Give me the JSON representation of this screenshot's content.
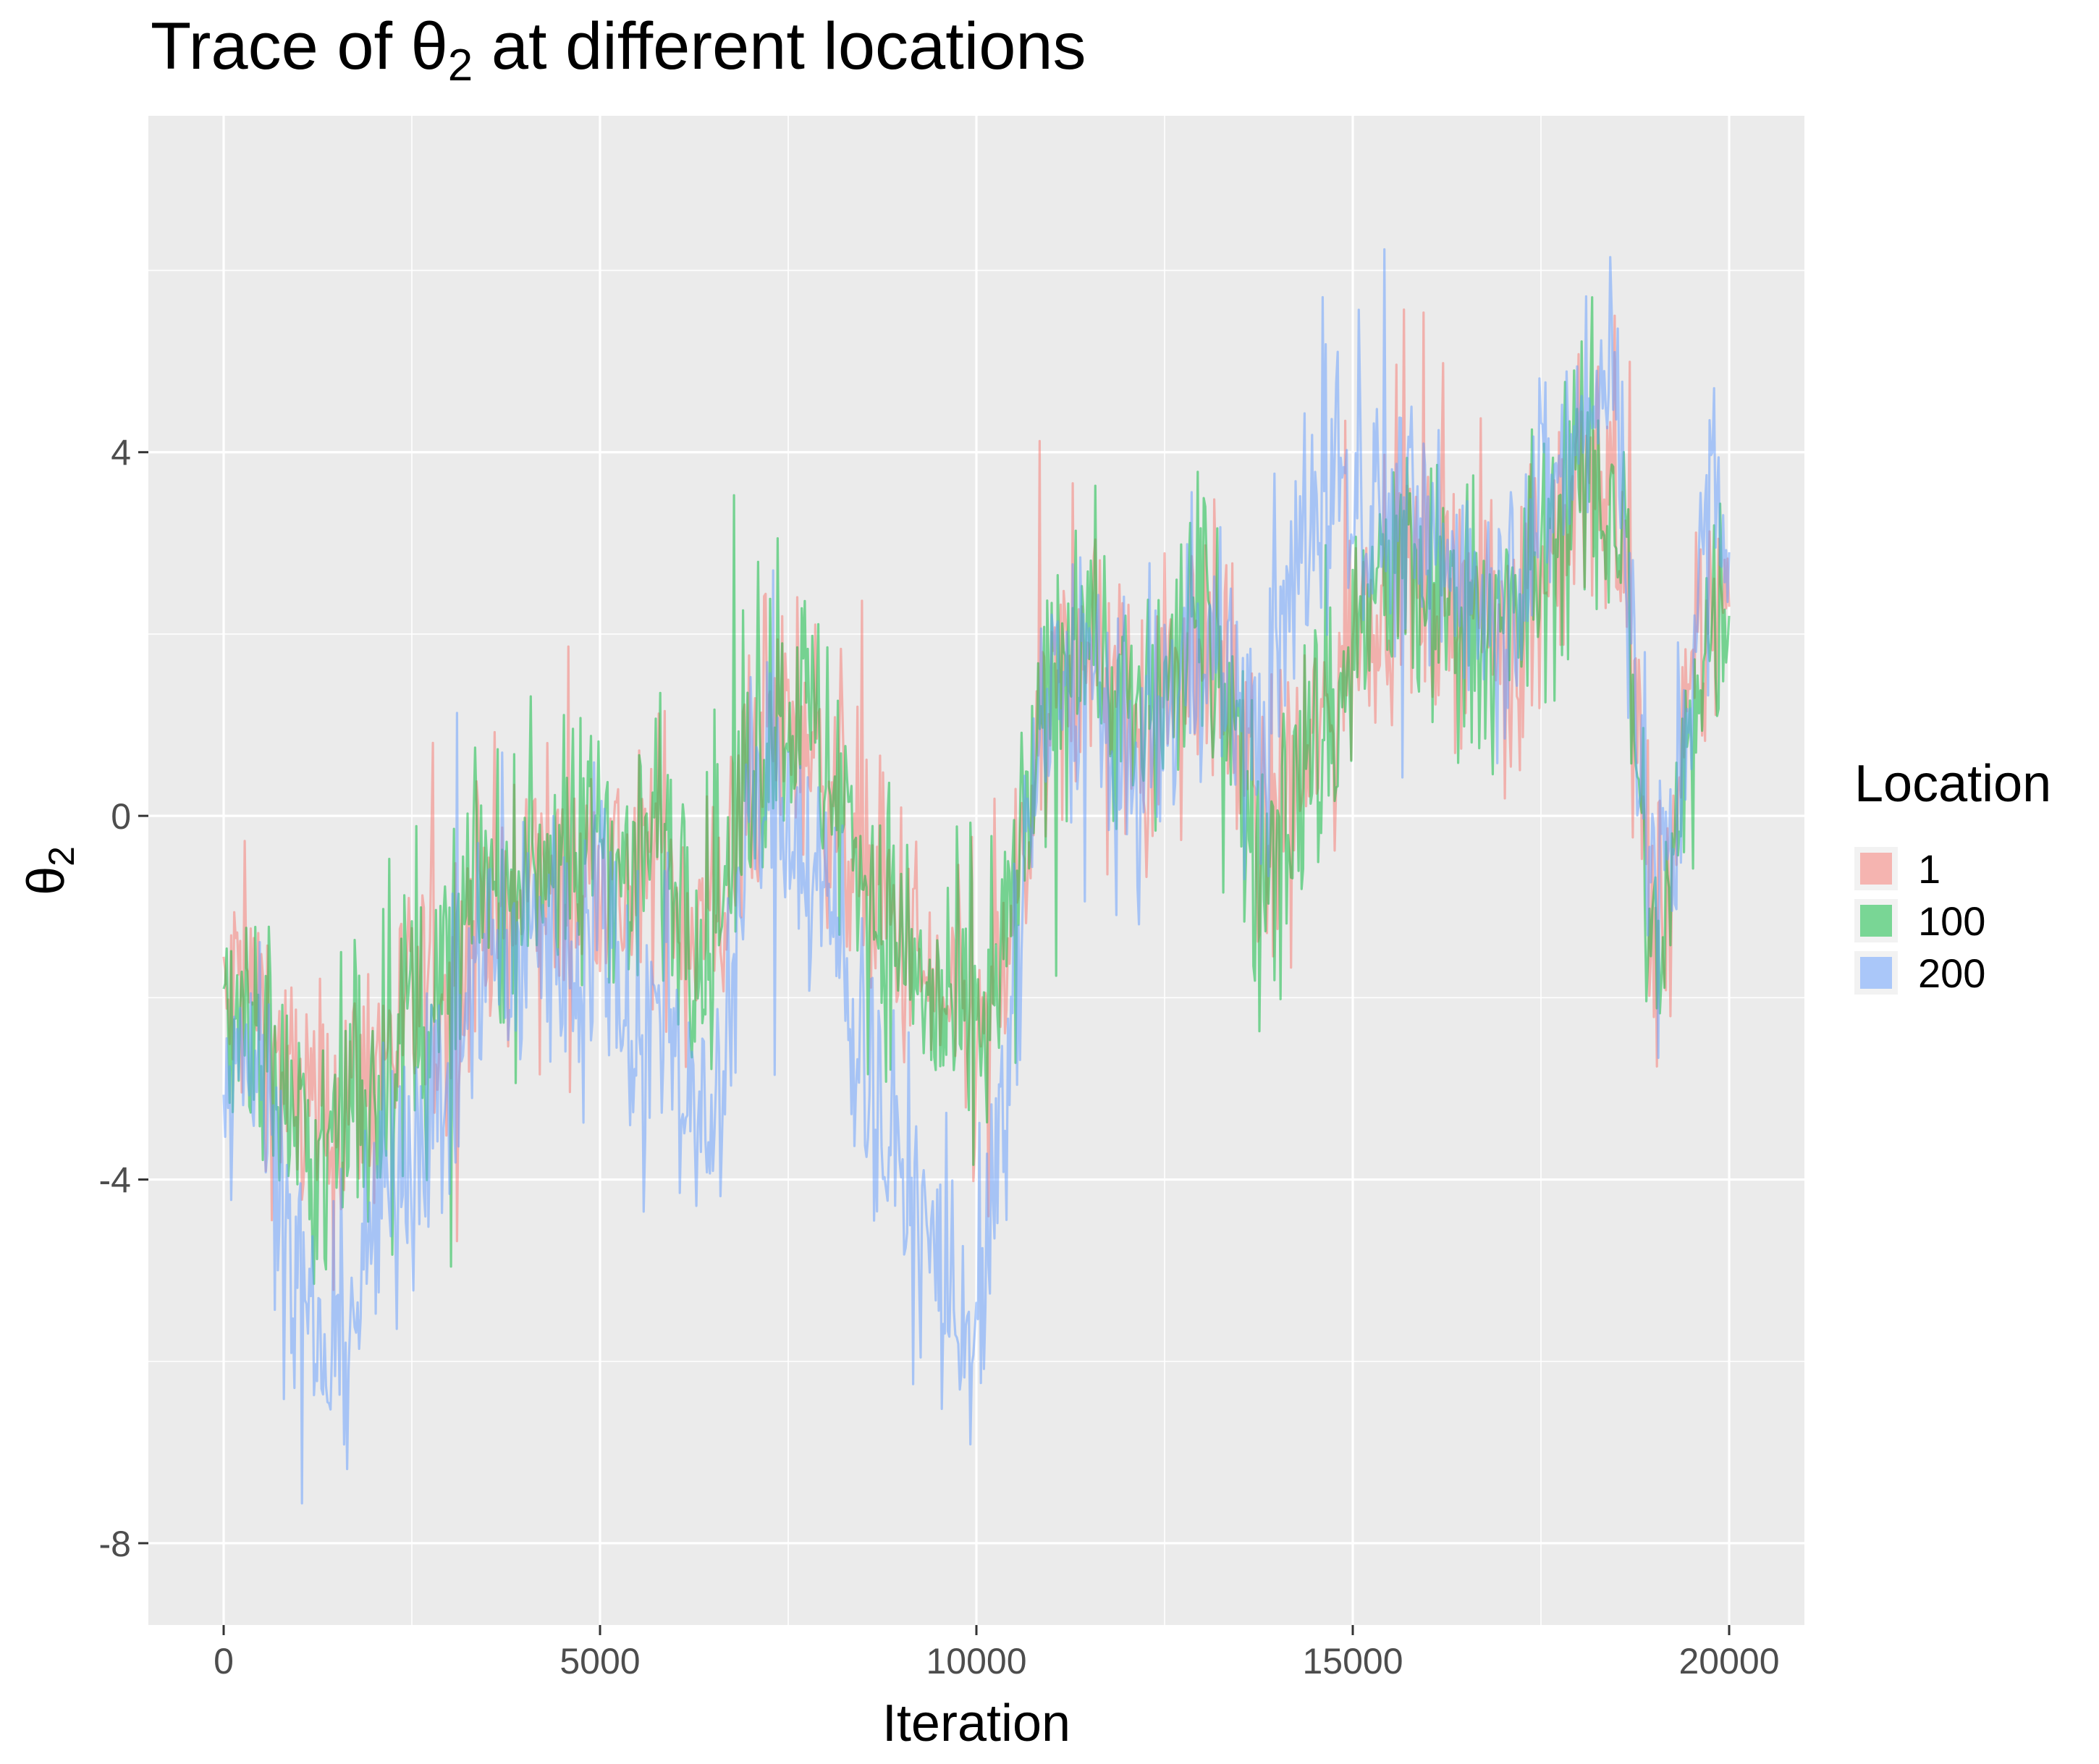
{
  "chart_data": {
    "type": "line",
    "title": "Trace of θ₂ at different locations",
    "title_parts": {
      "prefix": "Trace of ",
      "symbol": "θ",
      "subscript": "2",
      "suffix": " at different locations"
    },
    "xlabel": "Iteration",
    "ylabel": {
      "symbol": "θ",
      "subscript": "2"
    },
    "xlim": [
      -1000,
      21000
    ],
    "ylim": [
      -8.9,
      7.7
    ],
    "x_ticks": [
      0,
      5000,
      10000,
      15000,
      20000
    ],
    "x_tick_labels": [
      "0",
      "5000",
      "10000",
      "15000",
      "20000"
    ],
    "y_ticks": [
      -8,
      -4,
      0,
      4
    ],
    "y_tick_labels": [
      "-8",
      "-4",
      "0",
      "4"
    ],
    "grid": true,
    "legend": {
      "title": "Location",
      "placement": "right"
    },
    "series": [
      {
        "name": "1",
        "color": "#F8766D",
        "x": [
          0,
          200,
          400,
          600,
          800,
          1000,
          1200,
          1400,
          1600,
          1800,
          2000,
          2200,
          2400,
          2600,
          2800,
          3000,
          3200,
          3400,
          3600,
          3800,
          4000,
          4200,
          4400,
          4600,
          4800,
          5000,
          5200,
          5400,
          5600,
          5800,
          6000,
          6200,
          6400,
          6600,
          6800,
          7000,
          7200,
          7400,
          7600,
          7800,
          8000,
          8200,
          8400,
          8600,
          8800,
          9000,
          9200,
          9400,
          9600,
          9800,
          10000,
          10200,
          10400,
          10600,
          10800,
          11000,
          11200,
          11400,
          11600,
          11800,
          12000,
          12200,
          12400,
          12600,
          12800,
          13000,
          13200,
          13400,
          13600,
          13800,
          14000,
          14200,
          14400,
          14600,
          14800,
          15000,
          15200,
          15400,
          15600,
          15800,
          16000,
          16200,
          16400,
          16600,
          16800,
          17000,
          17200,
          17400,
          17600,
          17800,
          18000,
          18200,
          18400,
          18600,
          18800,
          19000,
          19200,
          19400,
          19600,
          19800,
          20000
        ],
        "values": [
          -2.3,
          -1.8,
          -2.0,
          -2.4,
          -2.9,
          -3.2,
          -3.4,
          -3.6,
          -3.2,
          -2.9,
          -2.7,
          -2.5,
          -2.3,
          -2.1,
          -2.0,
          -1.9,
          -1.5,
          -0.7,
          -0.9,
          -1.3,
          -0.8,
          -0.5,
          -0.7,
          -0.9,
          -0.7,
          -0.2,
          -0.6,
          -0.9,
          -0.7,
          -0.2,
          -0.8,
          -1.1,
          -1.3,
          -1.0,
          -0.4,
          0.4,
          0.9,
          1.0,
          1.1,
          0.8,
          0.5,
          0.1,
          -0.3,
          -0.7,
          -1.1,
          -1.3,
          -1.6,
          -2.0,
          -2.2,
          -2.4,
          -2.6,
          -2.4,
          -1.6,
          -0.6,
          0.4,
          1.0,
          1.5,
          2.2,
          1.8,
          1.3,
          1.0,
          0.8,
          1.2,
          1.5,
          1.9,
          2.0,
          1.7,
          1.2,
          0.2,
          -0.5,
          0.1,
          0.4,
          0.6,
          0.9,
          1.4,
          2.0,
          2.4,
          2.7,
          2.8,
          2.6,
          2.5,
          2.3,
          2.6,
          2.4,
          2.2,
          2.0,
          2.2,
          2.5,
          2.9,
          3.2,
          3.4,
          3.6,
          3.7,
          3.3,
          0.3,
          -1.4,
          -0.8,
          0.4,
          1.8,
          2.4,
          2.3
        ]
      },
      {
        "name": "100",
        "color": "#00BA38",
        "x": [
          0,
          200,
          400,
          600,
          800,
          1000,
          1200,
          1400,
          1600,
          1800,
          2000,
          2200,
          2400,
          2600,
          2800,
          3000,
          3200,
          3400,
          3600,
          3800,
          4000,
          4200,
          4400,
          4600,
          4800,
          5000,
          5200,
          5400,
          5600,
          5800,
          6000,
          6200,
          6400,
          6600,
          6800,
          7000,
          7200,
          7400,
          7600,
          7800,
          8000,
          8200,
          8400,
          8600,
          8800,
          9000,
          9200,
          9400,
          9600,
          9800,
          10000,
          10200,
          10400,
          10600,
          10800,
          11000,
          11200,
          11400,
          11600,
          11800,
          12000,
          12200,
          12400,
          12600,
          12800,
          13000,
          13200,
          13400,
          13600,
          13800,
          14000,
          14200,
          14400,
          14600,
          14800,
          15000,
          15200,
          15400,
          15600,
          15800,
          16000,
          16200,
          16400,
          16600,
          16800,
          17000,
          17200,
          17400,
          17600,
          17800,
          18000,
          18200,
          18400,
          18600,
          18800,
          19000,
          19200,
          19400,
          19600,
          19800,
          20000
        ],
        "values": [
          -2.2,
          -1.9,
          -2.1,
          -2.6,
          -3.1,
          -3.5,
          -3.8,
          -3.9,
          -3.4,
          -3.0,
          -2.8,
          -2.5,
          -2.3,
          -2.1,
          -2.0,
          -1.8,
          -1.3,
          -0.5,
          -0.7,
          -1.1,
          -0.6,
          -0.3,
          -0.5,
          -0.6,
          -0.4,
          0.1,
          -0.4,
          -0.7,
          -0.4,
          0.0,
          -0.6,
          -0.9,
          -1.2,
          -0.9,
          -0.3,
          0.6,
          1.0,
          1.2,
          1.3,
          1.0,
          0.6,
          0.1,
          -0.3,
          -0.8,
          -1.1,
          -1.4,
          -1.7,
          -2.1,
          -2.3,
          -2.4,
          -2.6,
          -2.3,
          -1.4,
          -0.4,
          0.5,
          1.2,
          1.8,
          2.5,
          2.0,
          1.4,
          1.1,
          0.9,
          1.3,
          1.6,
          2.0,
          2.1,
          1.8,
          1.2,
          0.0,
          -0.8,
          -0.1,
          0.2,
          0.5,
          0.8,
          1.3,
          1.9,
          2.3,
          2.6,
          2.7,
          2.5,
          2.4,
          2.2,
          2.5,
          2.3,
          2.1,
          2.0,
          2.3,
          2.6,
          3.0,
          3.3,
          3.5,
          3.6,
          3.5,
          3.1,
          0.1,
          -1.6,
          -1.0,
          0.3,
          1.7,
          2.3,
          2.2
        ]
      },
      {
        "name": "200",
        "color": "#619CFF",
        "x": [
          0,
          200,
          400,
          600,
          800,
          1000,
          1200,
          1400,
          1600,
          1800,
          2000,
          2200,
          2400,
          2600,
          2800,
          3000,
          3200,
          3400,
          3600,
          3800,
          4000,
          4200,
          4400,
          4600,
          4800,
          5000,
          5200,
          5400,
          5600,
          5800,
          6000,
          6200,
          6400,
          6600,
          6800,
          7000,
          7200,
          7400,
          7600,
          7800,
          8000,
          8200,
          8400,
          8600,
          8800,
          9000,
          9200,
          9400,
          9600,
          9800,
          10000,
          10200,
          10400,
          10600,
          10800,
          11000,
          11200,
          11400,
          11600,
          11800,
          12000,
          12200,
          12400,
          12600,
          12800,
          13000,
          13200,
          13400,
          13600,
          13800,
          14000,
          14200,
          14400,
          14600,
          14800,
          15000,
          15200,
          15400,
          15600,
          15800,
          16000,
          16200,
          16400,
          16600,
          16800,
          17000,
          17200,
          17400,
          17600,
          17800,
          18000,
          18200,
          18400,
          18600,
          18800,
          19000,
          19200,
          19400,
          19600,
          19800,
          20000
        ],
        "values": [
          -2.8,
          -2.3,
          -2.6,
          -3.3,
          -4.2,
          -5.1,
          -5.8,
          -6.0,
          -5.6,
          -5.2,
          -4.6,
          -4.1,
          -3.6,
          -3.3,
          -3.1,
          -2.9,
          -2.4,
          -1.3,
          -1.5,
          -2.0,
          -1.5,
          -1.1,
          -1.3,
          -1.6,
          -1.4,
          -0.7,
          -1.4,
          -2.2,
          -2.6,
          -1.7,
          -2.3,
          -3.2,
          -3.7,
          -3.0,
          -1.4,
          0.0,
          0.2,
          0.3,
          0.0,
          -0.6,
          -1.0,
          -1.6,
          -2.2,
          -2.9,
          -3.5,
          -4.0,
          -4.4,
          -4.8,
          -5.2,
          -5.5,
          -5.8,
          -5.0,
          -3.0,
          -0.8,
          0.6,
          1.1,
          1.3,
          1.8,
          1.2,
          0.5,
          0.4,
          0.5,
          0.9,
          1.3,
          1.8,
          2.1,
          1.9,
          1.5,
          0.8,
          0.6,
          1.5,
          2.5,
          3.3,
          3.6,
          3.8,
          3.7,
          3.5,
          3.4,
          3.3,
          3.1,
          2.9,
          2.6,
          2.9,
          2.7,
          2.5,
          2.4,
          2.8,
          3.2,
          3.6,
          3.9,
          4.2,
          4.5,
          4.6,
          4.0,
          0.8,
          -1.0,
          -0.6,
          0.8,
          2.5,
          3.4,
          2.9
        ]
      }
    ]
  }
}
